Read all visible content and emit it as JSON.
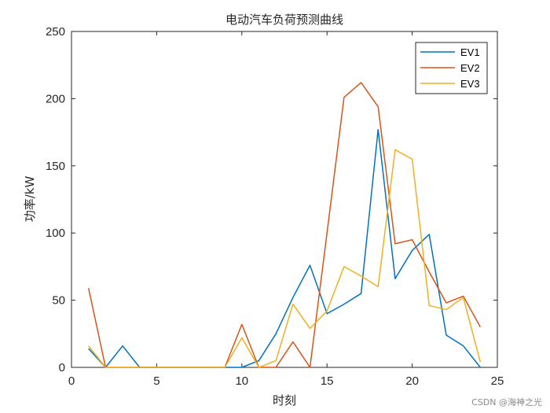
{
  "chart_data": {
    "type": "line",
    "title": "电动汽车负荷预测曲线",
    "xlabel": "时刻",
    "ylabel": "功率/kW",
    "xlim": [
      0,
      25
    ],
    "ylim": [
      0,
      250
    ],
    "xticks": [
      0,
      5,
      10,
      15,
      20,
      25
    ],
    "yticks": [
      0,
      50,
      100,
      150,
      200,
      250
    ],
    "grid": false,
    "legend_position": "top-right",
    "x": [
      1,
      2,
      3,
      4,
      5,
      6,
      7,
      8,
      9,
      10,
      11,
      12,
      13,
      14,
      15,
      16,
      17,
      18,
      19,
      20,
      21,
      22,
      23,
      24
    ],
    "series": [
      {
        "name": "EV1",
        "color": "#0072BD",
        "values": [
          14,
          0,
          16,
          0,
          0,
          0,
          0,
          0,
          0,
          0,
          5,
          25,
          52,
          76,
          40,
          47,
          55,
          177,
          66,
          87,
          99,
          24,
          16,
          0
        ]
      },
      {
        "name": "EV2",
        "color": "#D95319",
        "values": [
          59,
          0,
          0,
          0,
          0,
          0,
          0,
          0,
          0,
          32,
          0,
          0,
          19,
          0,
          100,
          201,
          212,
          194,
          92,
          95,
          71,
          48,
          53,
          30
        ]
      },
      {
        "name": "EV3",
        "color": "#EDB120",
        "values": [
          16,
          0,
          0,
          0,
          0,
          0,
          0,
          0,
          0,
          22,
          0,
          5,
          47,
          29,
          42,
          75,
          68,
          60,
          162,
          155,
          46,
          43,
          52,
          4
        ]
      }
    ]
  },
  "watermark": "CSDN @海神之光"
}
